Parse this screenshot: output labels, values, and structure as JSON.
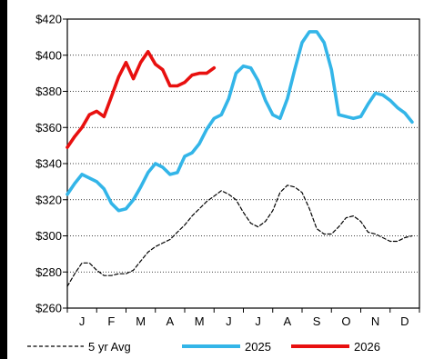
{
  "chart_data": {
    "type": "line",
    "x_axis": {
      "type": "category",
      "labels": [
        "J",
        "F",
        "M",
        "A",
        "M",
        "J",
        "J",
        "A",
        "S",
        "O",
        "N",
        "D"
      ]
    },
    "y_axis": {
      "min": 260,
      "max": 420,
      "step": 20,
      "tick_labels": [
        "$260",
        "$280",
        "$300",
        "$320",
        "$340",
        "$360",
        "$380",
        "$400",
        "$420"
      ]
    },
    "grid": {
      "horizontal": true,
      "style": "dotted"
    },
    "legend_position": "bottom",
    "series": [
      {
        "name": "5 yr Avg",
        "color": "#000000",
        "dashed": true,
        "x": [
          0,
          0.25,
          0.5,
          0.75,
          1,
          1.25,
          1.5,
          1.75,
          2,
          2.25,
          2.5,
          2.75,
          3,
          3.25,
          3.5,
          3.75,
          4,
          4.25,
          4.5,
          4.75,
          5,
          5.25,
          5.5,
          5.75,
          6,
          6.25,
          6.5,
          6.75,
          7,
          7.25,
          7.5,
          7.75,
          8,
          8.25,
          8.5,
          8.75,
          9,
          9.25,
          9.5,
          9.75,
          10,
          10.25,
          10.5,
          10.75,
          11,
          11.25,
          11.5,
          11.75
        ],
        "values": [
          272,
          279,
          285,
          285,
          281,
          278,
          278,
          279,
          279,
          281,
          286,
          291,
          294,
          296,
          298,
          302,
          306,
          311,
          315,
          319,
          322,
          325,
          323,
          320,
          313,
          307,
          305,
          308,
          314,
          324,
          328,
          327,
          324,
          315,
          304,
          301,
          301,
          305,
          310,
          311,
          308,
          302,
          301,
          299,
          297,
          297,
          299,
          300
        ]
      },
      {
        "name": "2025",
        "color": "#33b5e8",
        "dashed": false,
        "x": [
          0,
          0.25,
          0.5,
          0.75,
          1,
          1.25,
          1.5,
          1.75,
          2,
          2.25,
          2.5,
          2.75,
          3,
          3.25,
          3.5,
          3.75,
          4,
          4.25,
          4.5,
          4.75,
          5,
          5.25,
          5.5,
          5.75,
          6,
          6.25,
          6.5,
          6.75,
          7,
          7.25,
          7.5,
          7.75,
          8,
          8.25,
          8.5,
          8.75,
          9,
          9.25,
          9.5,
          9.75,
          10,
          10.25,
          10.5,
          10.75,
          11,
          11.25,
          11.5,
          11.75
        ],
        "values": [
          323,
          329,
          334,
          332,
          330,
          326,
          318,
          314,
          315,
          320,
          327,
          335,
          340,
          338,
          334,
          335,
          344,
          346,
          351,
          359,
          365,
          367,
          376,
          390,
          394,
          393,
          386,
          375,
          367,
          365,
          376,
          392,
          407,
          413,
          413,
          407,
          392,
          367,
          366,
          365,
          366,
          373,
          379,
          378,
          375,
          371,
          368,
          363
        ]
      },
      {
        "name": "2026",
        "color": "#e8100f",
        "dashed": false,
        "x": [
          0,
          0.25,
          0.5,
          0.75,
          1,
          1.25,
          1.5,
          1.75,
          2,
          2.25,
          2.5,
          2.75,
          3,
          3.25,
          3.5,
          3.75,
          4,
          4.25,
          4.5,
          4.75,
          5
        ],
        "values": [
          349,
          355,
          360,
          367,
          369,
          366,
          377,
          388,
          396,
          387,
          396,
          402,
          395,
          392,
          383,
          383,
          385,
          389,
          390,
          390,
          393
        ]
      }
    ]
  }
}
